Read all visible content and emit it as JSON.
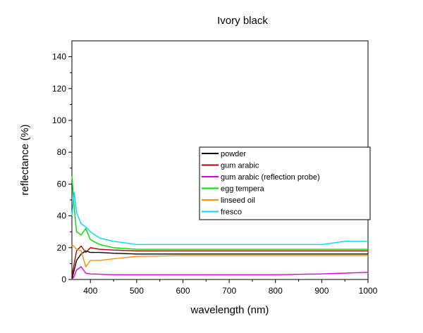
{
  "chart_data": {
    "type": "line",
    "title": "Ivory black",
    "xlabel": "wavelength (nm)",
    "ylabel": "reflectance (%)",
    "xlim": [
      360,
      1000
    ],
    "ylim": [
      0,
      150
    ],
    "xticks": [
      400,
      500,
      600,
      700,
      800,
      900,
      1000
    ],
    "yticks": [
      0,
      20,
      40,
      60,
      80,
      100,
      120,
      140
    ],
    "legend_position": "center-right",
    "grid": false,
    "series": [
      {
        "name": "powder",
        "color": "#000000",
        "x": [
          360,
          370,
          380,
          390,
          400,
          420,
          450,
          500,
          600,
          700,
          800,
          900,
          950,
          1000
        ],
        "y": [
          0,
          12,
          16,
          18,
          17,
          17,
          16.5,
          16,
          16,
          16,
          16,
          16,
          16,
          16
        ]
      },
      {
        "name": "gum arabic",
        "color": "#b00000",
        "x": [
          360,
          370,
          380,
          390,
          400,
          420,
          450,
          500,
          600,
          700,
          800,
          900,
          950,
          1000
        ],
        "y": [
          2,
          18,
          21,
          17,
          20,
          19,
          18.5,
          18,
          18,
          18,
          18,
          18,
          18,
          18
        ]
      },
      {
        "name": "gum arabic (reflection probe)",
        "color": "#e000e0",
        "x": [
          360,
          365,
          370,
          380,
          390,
          400,
          450,
          500,
          600,
          700,
          800,
          900,
          950,
          1000
        ],
        "y": [
          0,
          2,
          6,
          8,
          4,
          3.5,
          3,
          3,
          3,
          3,
          3,
          3.5,
          4,
          4.5
        ]
      },
      {
        "name": "egg tempera",
        "color": "#00dd00",
        "x": [
          360,
          365,
          370,
          380,
          390,
          400,
          420,
          450,
          500,
          600,
          700,
          800,
          900,
          950,
          1000
        ],
        "y": [
          65,
          45,
          30,
          28,
          32,
          25,
          22,
          20,
          19,
          19,
          19,
          19,
          19,
          19,
          19
        ]
      },
      {
        "name": "linseed oil",
        "color": "#ff8c00",
        "x": [
          360,
          370,
          380,
          390,
          400,
          420,
          450,
          500,
          600,
          700,
          800,
          900,
          950,
          1000
        ],
        "y": [
          22,
          19,
          18,
          8,
          12,
          12,
          13,
          14.5,
          15,
          15,
          15,
          15,
          15,
          15
        ]
      },
      {
        "name": "fresco",
        "color": "#00d8ff",
        "x": [
          360,
          365,
          370,
          380,
          390,
          400,
          420,
          450,
          500,
          600,
          700,
          800,
          900,
          950,
          1000
        ],
        "y": [
          40,
          55,
          42,
          35,
          33,
          30,
          26,
          24,
          22,
          22,
          22,
          22,
          22,
          24,
          24
        ]
      }
    ]
  }
}
